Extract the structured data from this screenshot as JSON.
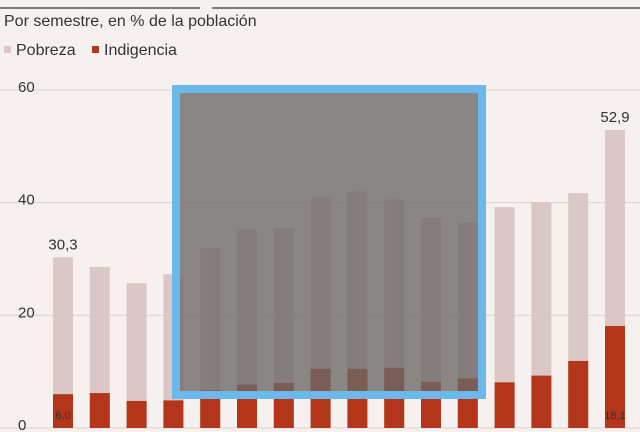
{
  "chart_data": {
    "type": "bar",
    "subtitle": "Por semestre, en % de la población",
    "categories": [
      null,
      null,
      null,
      null,
      null,
      null,
      null,
      null,
      null,
      null,
      null,
      null,
      null,
      null,
      null,
      null
    ],
    "series": [
      {
        "name": "Pobreza",
        "color": "#dcc7c7",
        "values": [
          30.3,
          28.6,
          25.7,
          27.3,
          32.0,
          35.4,
          35.5,
          40.9,
          42.0,
          40.6,
          37.3,
          36.5,
          39.2,
          40.1,
          41.7,
          52.9
        ],
        "value_labels": [
          "30,3",
          null,
          null,
          null,
          null,
          null,
          null,
          null,
          null,
          null,
          null,
          null,
          null,
          null,
          null,
          "52,9"
        ]
      },
      {
        "name": "Indigencia",
        "color": "#b3361b",
        "values": [
          6.0,
          6.2,
          4.8,
          4.9,
          6.7,
          7.7,
          8.0,
          10.5,
          10.5,
          10.7,
          8.2,
          8.8,
          8.1,
          9.3,
          11.9,
          18.1
        ],
        "value_labels": [
          "6,0",
          null,
          null,
          null,
          null,
          null,
          null,
          null,
          null,
          null,
          null,
          null,
          null,
          null,
          null,
          "18,1"
        ]
      }
    ],
    "ylim": [
      0,
      60
    ],
    "yticks": [
      0,
      20,
      40,
      60
    ],
    "grid": true
  }
}
